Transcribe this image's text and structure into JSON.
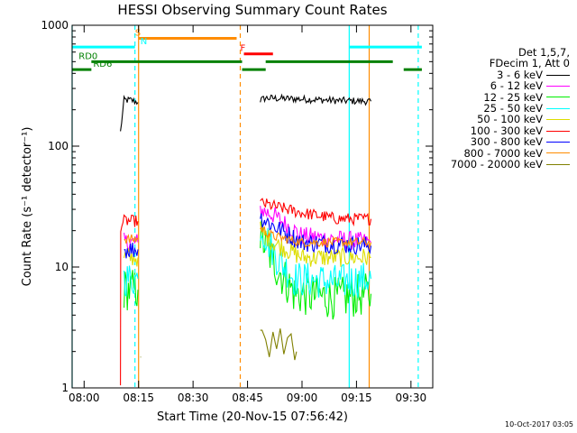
{
  "chart_data": {
    "type": "line",
    "title": "HESSI Observing Summary Count Rates",
    "xlabel": "Start Time (20-Nov-15 07:56:42)",
    "ylabel": "Count Rate (s⁻¹ detector⁻¹)",
    "y_scale": "log",
    "ylim": [
      1,
      1000
    ],
    "xlim": [
      "07:56:42",
      "09:36:00"
    ],
    "grid": false,
    "legend_position": "outside-right",
    "y_ticks": [
      {
        "value": 1,
        "label": "1"
      },
      {
        "value": 10,
        "label": "10"
      },
      {
        "value": 100,
        "label": "100"
      },
      {
        "value": 1000,
        "label": "1000"
      }
    ],
    "x_ticks": [
      "08:00",
      "08:15",
      "08:30",
      "08:45",
      "09:00",
      "09:15",
      "09:30"
    ],
    "legend": {
      "header": [
        "Det 1,5,7,",
        "FDecim 1, Att 0"
      ],
      "entries": [
        {
          "label": "3 - 6 keV",
          "color": "#000000"
        },
        {
          "label": "6 - 12 keV",
          "color": "#ff00ff"
        },
        {
          "label": "12 - 25 keV",
          "color": "#00ee00"
        },
        {
          "label": "25 - 50 keV",
          "color": "#00ffff"
        },
        {
          "label": "50 - 100 keV",
          "color": "#dddd00"
        },
        {
          "label": "100 - 300 keV",
          "color": "#ff0000"
        },
        {
          "label": "300 - 800 keV",
          "color": "#0000ff"
        },
        {
          "label": "800 - 7000 keV",
          "color": "#ff8c00"
        },
        {
          "label": "7000 - 20000 keV",
          "color": "#808000"
        }
      ]
    },
    "series": [
      {
        "name": "3 - 6 keV",
        "color": "#000000",
        "noise": 0.03,
        "segments": [
          {
            "x": [
              "08:10:00",
              "08:11:00",
              "08:13:00",
              "08:14:50"
            ],
            "y": [
              130,
              240,
              240,
              230
            ]
          },
          {
            "x": [
              "08:48:30",
              "08:50:00",
              "09:00:00",
              "09:10:00",
              "09:19:00"
            ],
            "y": [
              240,
              250,
              245,
              238,
              235
            ]
          }
        ]
      },
      {
        "name": "6 - 12 keV",
        "color": "#ff00ff",
        "noise": 0.08,
        "segments": [
          {
            "x": [
              "08:11:00",
              "08:14:50"
            ],
            "y": [
              16,
              16
            ]
          },
          {
            "x": [
              "08:48:30",
              "08:52:00",
              "09:00:00",
              "09:19:00"
            ],
            "y": [
              30,
              27,
              18,
              16
            ]
          }
        ]
      },
      {
        "name": "12 - 25 keV",
        "color": "#00ee00",
        "noise": 0.18,
        "segments": [
          {
            "x": [
              "08:11:00",
              "08:14:50"
            ],
            "y": [
              6.5,
              6.5
            ]
          },
          {
            "x": [
              "08:48:30",
              "08:53:00",
              "08:58:00",
              "09:10:00",
              "09:19:00"
            ],
            "y": [
              18,
              10,
              6,
              5.5,
              6
            ]
          }
        ]
      },
      {
        "name": "25 - 50 keV",
        "color": "#00ffff",
        "noise": 0.15,
        "segments": [
          {
            "x": [
              "08:11:00",
              "08:14:50"
            ],
            "y": [
              8,
              8
            ]
          },
          {
            "x": [
              "08:48:30",
              "08:53:00",
              "08:58:00",
              "09:10:00",
              "09:19:00"
            ],
            "y": [
              22,
              12,
              8,
              7.5,
              8
            ]
          }
        ]
      },
      {
        "name": "50 - 100 keV",
        "color": "#dddd00",
        "noise": 0.08,
        "segments": [
          {
            "x": [
              "08:11:00",
              "08:14:50"
            ],
            "y": [
              12,
              12
            ]
          },
          {
            "x": [
              "08:48:30",
              "08:52:00",
              "09:00:00",
              "09:19:00"
            ],
            "y": [
              20,
              16,
              12,
              12
            ]
          }
        ]
      },
      {
        "name": "100 - 300 keV",
        "color": "#ff0000",
        "noise": 0.05,
        "segments": [
          {
            "x": [
              "08:10:00",
              "08:10:05",
              "08:11:00",
              "08:14:50"
            ],
            "y": [
              1,
              22,
              24,
              24
            ]
          },
          {
            "x": [
              "08:48:30",
              "08:52:00",
              "09:00:00",
              "09:10:00",
              "09:19:00"
            ],
            "y": [
              34,
              32,
              28,
              25,
              25
            ]
          }
        ]
      },
      {
        "name": "300 - 800 keV",
        "color": "#0000ff",
        "noise": 0.08,
        "segments": [
          {
            "x": [
              "08:11:00",
              "08:14:50"
            ],
            "y": [
              14,
              14
            ]
          },
          {
            "x": [
              "08:48:30",
              "08:52:00",
              "09:00:00",
              "09:19:00"
            ],
            "y": [
              26,
              22,
              16,
              15
            ]
          }
        ]
      },
      {
        "name": "800 - 7000 keV",
        "color": "#ff8c00",
        "noise": 0.04,
        "segments": [
          {
            "x": [
              "08:11:00",
              "08:14:50"
            ],
            "y": [
              17,
              17
            ]
          },
          {
            "x": [
              "08:48:30",
              "08:52:00",
              "09:00:00",
              "09:19:00"
            ],
            "y": [
              21,
              18,
              16,
              16
            ]
          }
        ]
      },
      {
        "name": "7000 - 20000 keV",
        "color": "#808000",
        "noise": 0.0,
        "segments": [
          {
            "x": [
              "08:15:30",
              "08:15:40"
            ],
            "y": [
              1.8,
              1.8
            ]
          },
          {
            "x": [
              "08:48:30",
              "08:49:00",
              "08:50:00",
              "08:51:00",
              "08:52:00",
              "08:53:00",
              "08:54:00",
              "08:55:00",
              "08:56:00",
              "08:57:00",
              "08:58:00",
              "08:58:30"
            ],
            "y": [
              3.0,
              3.0,
              2.5,
              1.8,
              2.9,
              2.1,
              3.1,
              1.9,
              2.6,
              2.8,
              1.7,
              2.0
            ]
          }
        ]
      }
    ],
    "markers": [
      {
        "time": "07:56:42",
        "color": "#00ffff",
        "style": "solid"
      },
      {
        "time": "08:14:00",
        "color": "#00ffff",
        "style": "dashed"
      },
      {
        "time": "08:15:00",
        "color": "#ff8c00",
        "style": "solid"
      },
      {
        "time": "08:43:00",
        "color": "#ff8c00",
        "style": "dashed"
      },
      {
        "time": "09:13:00",
        "color": "#00ffff",
        "style": "solid"
      },
      {
        "time": "09:18:30",
        "color": "#ff8c00",
        "style": "solid"
      },
      {
        "time": "09:32:00",
        "color": "#00ffff",
        "style": "dashed"
      }
    ],
    "status_bars": [
      {
        "label": "S",
        "label_color": "#ff8c00",
        "color": "#ff8c00",
        "level": 780,
        "label_at": "08:14:00",
        "intervals": [
          [
            "08:15:00",
            "08:42:00"
          ]
        ]
      },
      {
        "label": "N",
        "label_color": "#00ffff",
        "color": "#00ffff",
        "level": 660,
        "label_at": "08:15:30",
        "intervals": [
          [
            "07:56:42",
            "08:14:00"
          ],
          [
            "09:13:00",
            "09:33:00"
          ]
        ]
      },
      {
        "label": "F",
        "label_color": "#ff0000",
        "color": "#ff0000",
        "level": 580,
        "label_at": "08:43:00",
        "intervals": [
          [
            "08:44:00",
            "08:52:00"
          ]
        ]
      },
      {
        "label": "RD0",
        "label_color": "#008000",
        "color": "#008000",
        "level": 500,
        "label_at": "07:58:30",
        "intervals": [
          [
            "08:02:00",
            "08:43:30"
          ],
          [
            "08:50:00",
            "09:25:00"
          ]
        ]
      },
      {
        "label": "RD6",
        "label_color": "#008000",
        "color": "#008000",
        "level": 430,
        "label_at": "08:02:30",
        "intervals": [
          [
            "07:56:42",
            "08:02:00"
          ],
          [
            "08:43:30",
            "08:50:00"
          ],
          [
            "09:28:00",
            "09:33:00"
          ]
        ]
      }
    ]
  },
  "footnote": "10-Oct-2017 03:05"
}
